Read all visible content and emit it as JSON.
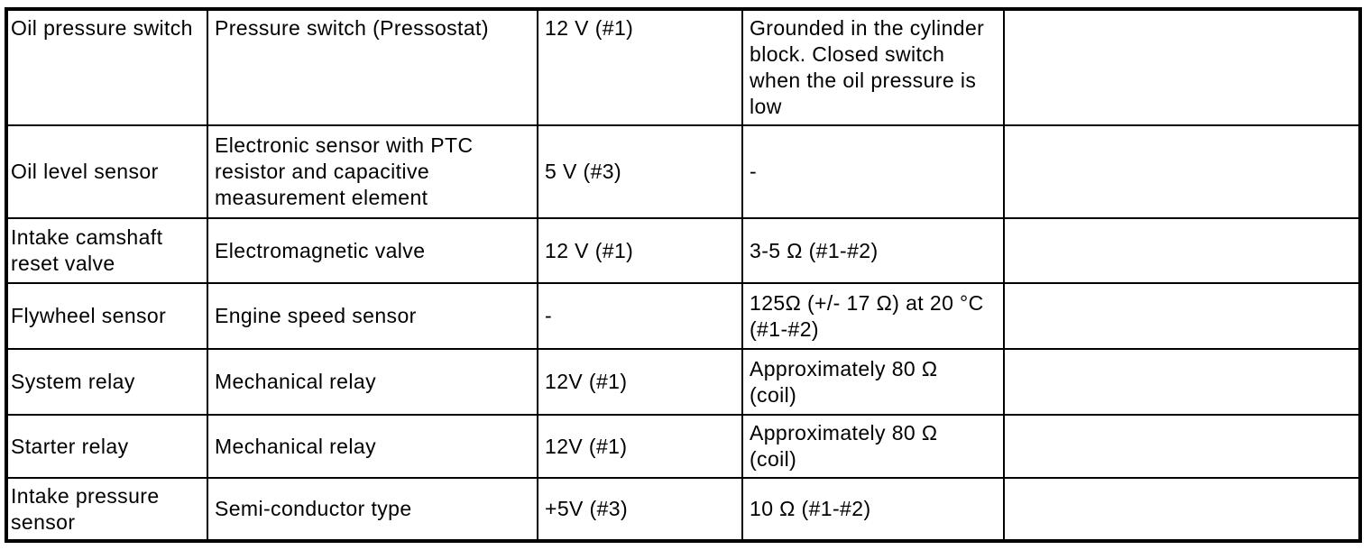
{
  "page": {
    "background_color": "#ffffff",
    "border_color": "#000000",
    "text_color": "#000000"
  },
  "table": {
    "column_semantics": [
      "component",
      "type_description",
      "supply_voltage",
      "resistance_or_notes",
      "empty"
    ],
    "rows": [
      {
        "component": "Oil pressure switch",
        "description": "Pressure switch (Pressostat)",
        "voltage": "12 V (#1)",
        "resistance": "Grounded in the cylinder\nblock. Closed switch\nwhen the oil pressure is\nlow",
        "extra": ""
      },
      {
        "component": "Oil level sensor",
        "description": "Electronic sensor with PTC\nresistor and capacitive\nmeasurement element",
        "voltage": "5 V (#3)",
        "resistance": "-",
        "extra": ""
      },
      {
        "component": "Intake camshaft\nreset valve",
        "description": "Electromagnetic valve",
        "voltage": "12 V (#1)",
        "resistance": "3-5 Ω (#1-#2)",
        "extra": ""
      },
      {
        "component": "Flywheel sensor",
        "description": "Engine speed sensor",
        "voltage": "-",
        "resistance": "125Ω (+/- 17 Ω) at 20 °C\n(#1-#2)",
        "extra": ""
      },
      {
        "component": "System relay",
        "description": "Mechanical relay",
        "voltage": "12V (#1)",
        "resistance": "Approximately 80 Ω\n(coil)",
        "extra": ""
      },
      {
        "component": "Starter relay",
        "description": "Mechanical relay",
        "voltage": "12V (#1)",
        "resistance": "Approximately 80 Ω\n(coil)",
        "extra": ""
      },
      {
        "component": "Intake pressure\nsensor",
        "description": "Semi-conductor type",
        "voltage": "+5V (#3)",
        "resistance": "10 Ω (#1-#2)",
        "extra": ""
      }
    ]
  }
}
